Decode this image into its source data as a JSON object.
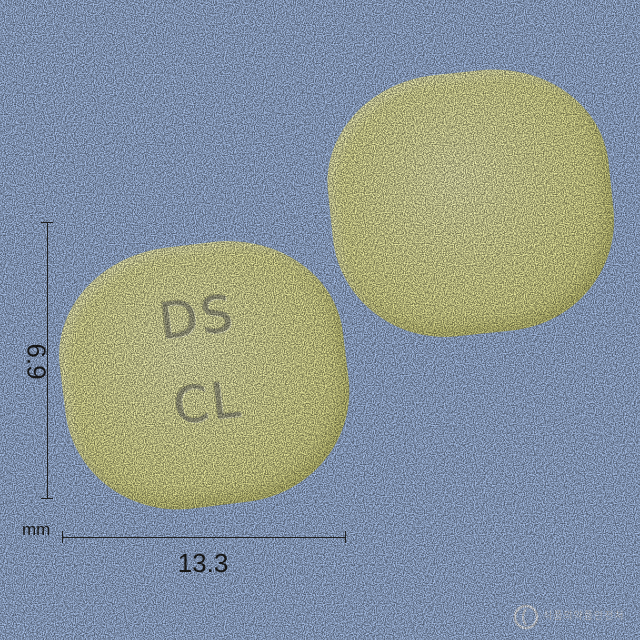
{
  "image": {
    "subject": "two yellow film-coated tablets on a blue background",
    "colors": {
      "background": "#aac3ec",
      "tablet": "#ecec9f",
      "imprint": "#a9a98a"
    }
  },
  "tablet": {
    "imprint_line_1": "DS",
    "imprint_line_2": "CL"
  },
  "measurements": {
    "height": "6.9",
    "width": "13.3",
    "unit": "mm"
  },
  "watermark": {
    "icon": "agency-logo-icon",
    "text": "식품의약품안전처"
  }
}
